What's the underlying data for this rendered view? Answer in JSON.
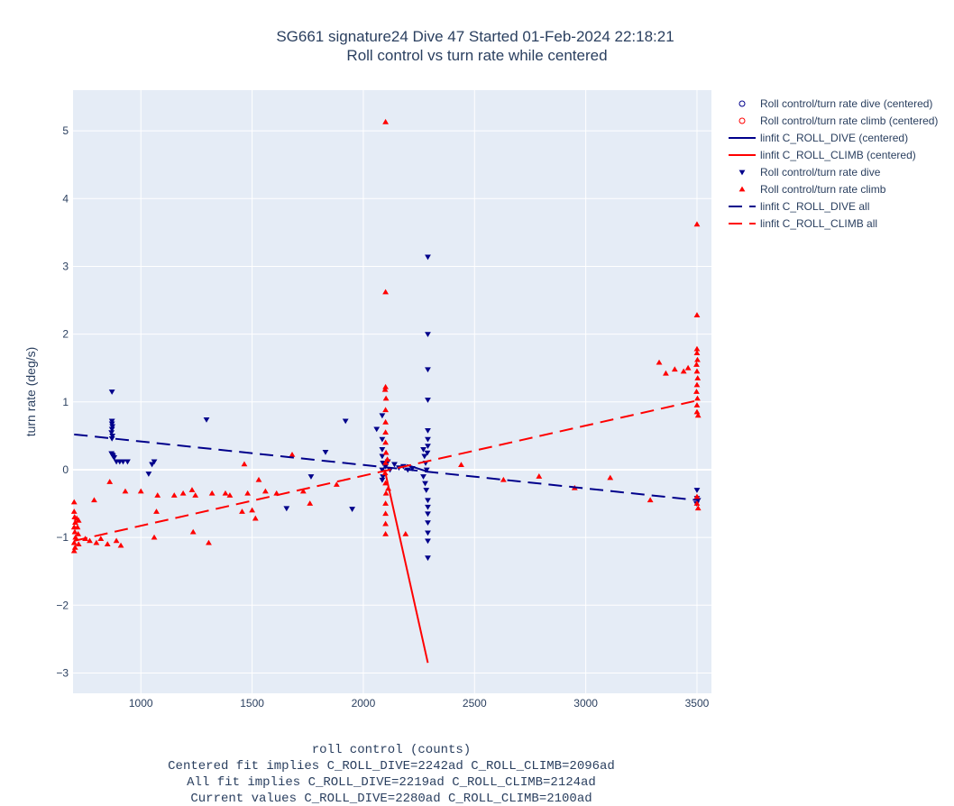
{
  "title_line1": "SG661 signature24 Dive 47 Started 01-Feb-2024 22:18:21",
  "title_line2": "Roll control vs turn rate while centered",
  "xlabel_lines": [
    "roll control (counts)",
    "Centered fit implies C_ROLL_DIVE=2242ad C_ROLL_CLIMB=2096ad",
    "All fit implies C_ROLL_DIVE=2219ad C_ROLL_CLIMB=2124ad",
    "Current values C_ROLL_DIVE=2280ad C_ROLL_CLIMB=2100ad"
  ],
  "ylabel": "turn rate (deg/s)",
  "colors": {
    "dive": "#00008b",
    "climb": "#ff0000",
    "plot_bg": "#e5ecf6",
    "grid": "#ffffff"
  },
  "chart_data": {
    "type": "scatter",
    "xlim": [
      695,
      3565
    ],
    "ylim": [
      -3.3,
      5.6
    ],
    "xticks": [
      1000,
      1500,
      2000,
      2500,
      3000,
      3500
    ],
    "yticks": [
      -3,
      -2,
      -1,
      0,
      1,
      2,
      3,
      4,
      5
    ],
    "grid": true,
    "legend_position": "top-right outside",
    "series": [
      {
        "name": "Roll control/turn rate dive (centered)",
        "kind": "open-circle",
        "color": "#00008b",
        "points": []
      },
      {
        "name": "Roll control/turn rate climb (centered)",
        "kind": "open-circle",
        "color": "#ff0000",
        "points": []
      },
      {
        "name": "linfit C_ROLL_DIVE (centered)",
        "kind": "solid-line",
        "color": "#00008b",
        "points": [
          [
            2195,
            0.07
          ],
          [
            2290,
            -0.03
          ]
        ]
      },
      {
        "name": "linfit C_ROLL_CLIMB (centered)",
        "kind": "solid-line",
        "color": "#ff0000",
        "points": [
          [
            2096,
            0.0
          ],
          [
            2290,
            -2.85
          ]
        ]
      },
      {
        "name": "Roll control/turn rate dive",
        "kind": "triangle-down",
        "color": "#00008b",
        "points": [
          [
            870,
            1.15
          ],
          [
            870,
            0.72
          ],
          [
            870,
            0.68
          ],
          [
            872,
            0.64
          ],
          [
            870,
            0.6
          ],
          [
            868,
            0.55
          ],
          [
            872,
            0.5
          ],
          [
            870,
            0.46
          ],
          [
            868,
            0.24
          ],
          [
            872,
            0.22
          ],
          [
            875,
            0.2
          ],
          [
            880,
            0.18
          ],
          [
            890,
            0.12
          ],
          [
            905,
            0.12
          ],
          [
            920,
            0.12
          ],
          [
            940,
            0.12
          ],
          [
            1035,
            -0.06
          ],
          [
            1050,
            0.08
          ],
          [
            1060,
            0.12
          ],
          [
            1295,
            0.74
          ],
          [
            1655,
            -0.57
          ],
          [
            1765,
            -0.1
          ],
          [
            1830,
            0.26
          ],
          [
            1920,
            0.72
          ],
          [
            1950,
            -0.58
          ],
          [
            2060,
            0.6
          ],
          [
            2085,
            0.8
          ],
          [
            2085,
            0.45
          ],
          [
            2085,
            0.3
          ],
          [
            2085,
            0.2
          ],
          [
            2088,
            0.1
          ],
          [
            2085,
            0.0
          ],
          [
            2088,
            -0.1
          ],
          [
            2085,
            -0.15
          ],
          [
            2100,
            0.05
          ],
          [
            2110,
            0.12
          ],
          [
            2120,
            0.0
          ],
          [
            2140,
            0.08
          ],
          [
            2160,
            0.03
          ],
          [
            2180,
            0.05
          ],
          [
            2200,
            0.0
          ],
          [
            2220,
            0.02
          ],
          [
            2270,
            0.3
          ],
          [
            2275,
            0.2
          ],
          [
            2280,
            0.1
          ],
          [
            2285,
            0.0
          ],
          [
            2270,
            -0.1
          ],
          [
            2278,
            -0.2
          ],
          [
            2283,
            -0.3
          ],
          [
            2288,
            0.25
          ],
          [
            2290,
            3.14
          ],
          [
            2290,
            2.0
          ],
          [
            2290,
            1.48
          ],
          [
            2290,
            1.03
          ],
          [
            2290,
            0.58
          ],
          [
            2290,
            0.45
          ],
          [
            2290,
            0.35
          ],
          [
            2290,
            -0.45
          ],
          [
            2290,
            -0.55
          ],
          [
            2290,
            -0.65
          ],
          [
            2290,
            -0.78
          ],
          [
            2290,
            -0.93
          ],
          [
            2290,
            -1.05
          ],
          [
            2290,
            -1.3
          ],
          [
            3500,
            -0.3
          ],
          [
            3500,
            -0.42
          ],
          [
            3505,
            -0.45
          ],
          [
            3498,
            -0.5
          ]
        ]
      },
      {
        "name": "Roll control/turn rate climb",
        "kind": "triangle-up",
        "color": "#ff0000",
        "points": [
          [
            700,
            -0.48
          ],
          [
            700,
            -0.62
          ],
          [
            702,
            -0.7
          ],
          [
            705,
            -0.78
          ],
          [
            700,
            -0.85
          ],
          [
            703,
            -0.92
          ],
          [
            706,
            -1.0
          ],
          [
            700,
            -1.08
          ],
          [
            704,
            -1.15
          ],
          [
            700,
            -1.2
          ],
          [
            712,
            -0.72
          ],
          [
            715,
            -0.85
          ],
          [
            718,
            -0.95
          ],
          [
            720,
            -0.75
          ],
          [
            720,
            -1.1
          ],
          [
            750,
            -1.02
          ],
          [
            770,
            -1.05
          ],
          [
            790,
            -0.45
          ],
          [
            800,
            -1.08
          ],
          [
            820,
            -1.02
          ],
          [
            850,
            -1.1
          ],
          [
            860,
            -0.18
          ],
          [
            890,
            -1.05
          ],
          [
            910,
            -1.12
          ],
          [
            930,
            -0.32
          ],
          [
            1000,
            -0.32
          ],
          [
            1060,
            -1.0
          ],
          [
            1070,
            -0.62
          ],
          [
            1075,
            -0.38
          ],
          [
            1150,
            -0.38
          ],
          [
            1190,
            -0.35
          ],
          [
            1230,
            -0.3
          ],
          [
            1235,
            -0.92
          ],
          [
            1245,
            -0.38
          ],
          [
            1305,
            -1.08
          ],
          [
            1320,
            -0.35
          ],
          [
            1380,
            -0.35
          ],
          [
            1400,
            -0.38
          ],
          [
            1455,
            -0.62
          ],
          [
            1465,
            0.08
          ],
          [
            1480,
            -0.35
          ],
          [
            1500,
            -0.6
          ],
          [
            1515,
            -0.72
          ],
          [
            1530,
            -0.15
          ],
          [
            1560,
            -0.32
          ],
          [
            1610,
            -0.35
          ],
          [
            1680,
            0.22
          ],
          [
            1730,
            -0.32
          ],
          [
            1760,
            -0.5
          ],
          [
            1880,
            -0.22
          ],
          [
            2100,
            5.13
          ],
          [
            2100,
            2.62
          ],
          [
            2100,
            1.22
          ],
          [
            2098,
            1.18
          ],
          [
            2102,
            1.05
          ],
          [
            2100,
            0.88
          ],
          [
            2100,
            0.7
          ],
          [
            2100,
            0.55
          ],
          [
            2100,
            0.4
          ],
          [
            2102,
            0.25
          ],
          [
            2100,
            0.1
          ],
          [
            2098,
            -0.05
          ],
          [
            2100,
            -0.2
          ],
          [
            2102,
            -0.35
          ],
          [
            2100,
            -0.5
          ],
          [
            2100,
            -0.65
          ],
          [
            2100,
            -0.8
          ],
          [
            2100,
            -0.95
          ],
          [
            2108,
            0.15
          ],
          [
            2112,
            -0.28
          ],
          [
            2190,
            -0.95
          ],
          [
            2440,
            0.07
          ],
          [
            2630,
            -0.15
          ],
          [
            2790,
            -0.1
          ],
          [
            2950,
            -0.27
          ],
          [
            3110,
            -0.12
          ],
          [
            3290,
            -0.45
          ],
          [
            3330,
            1.58
          ],
          [
            3360,
            1.42
          ],
          [
            3400,
            1.48
          ],
          [
            3440,
            1.45
          ],
          [
            3460,
            1.5
          ],
          [
            3500,
            3.62
          ],
          [
            3500,
            2.28
          ],
          [
            3500,
            1.78
          ],
          [
            3500,
            1.72
          ],
          [
            3502,
            1.62
          ],
          [
            3498,
            1.55
          ],
          [
            3500,
            1.45
          ],
          [
            3503,
            1.35
          ],
          [
            3500,
            1.25
          ],
          [
            3498,
            1.15
          ],
          [
            3502,
            1.05
          ],
          [
            3500,
            0.95
          ],
          [
            3500,
            0.85
          ],
          [
            3505,
            0.8
          ],
          [
            3500,
            -0.4
          ],
          [
            3500,
            -0.5
          ],
          [
            3505,
            -0.57
          ]
        ]
      },
      {
        "name": "linfit C_ROLL_DIVE all",
        "kind": "dashed-line",
        "color": "#00008b",
        "points": [
          [
            700,
            0.52
          ],
          [
            3500,
            -0.45
          ]
        ]
      },
      {
        "name": "linfit C_ROLL_CLIMB all",
        "kind": "dashed-line",
        "color": "#ff0000",
        "points": [
          [
            700,
            -1.05
          ],
          [
            3500,
            1.02
          ]
        ]
      }
    ]
  }
}
